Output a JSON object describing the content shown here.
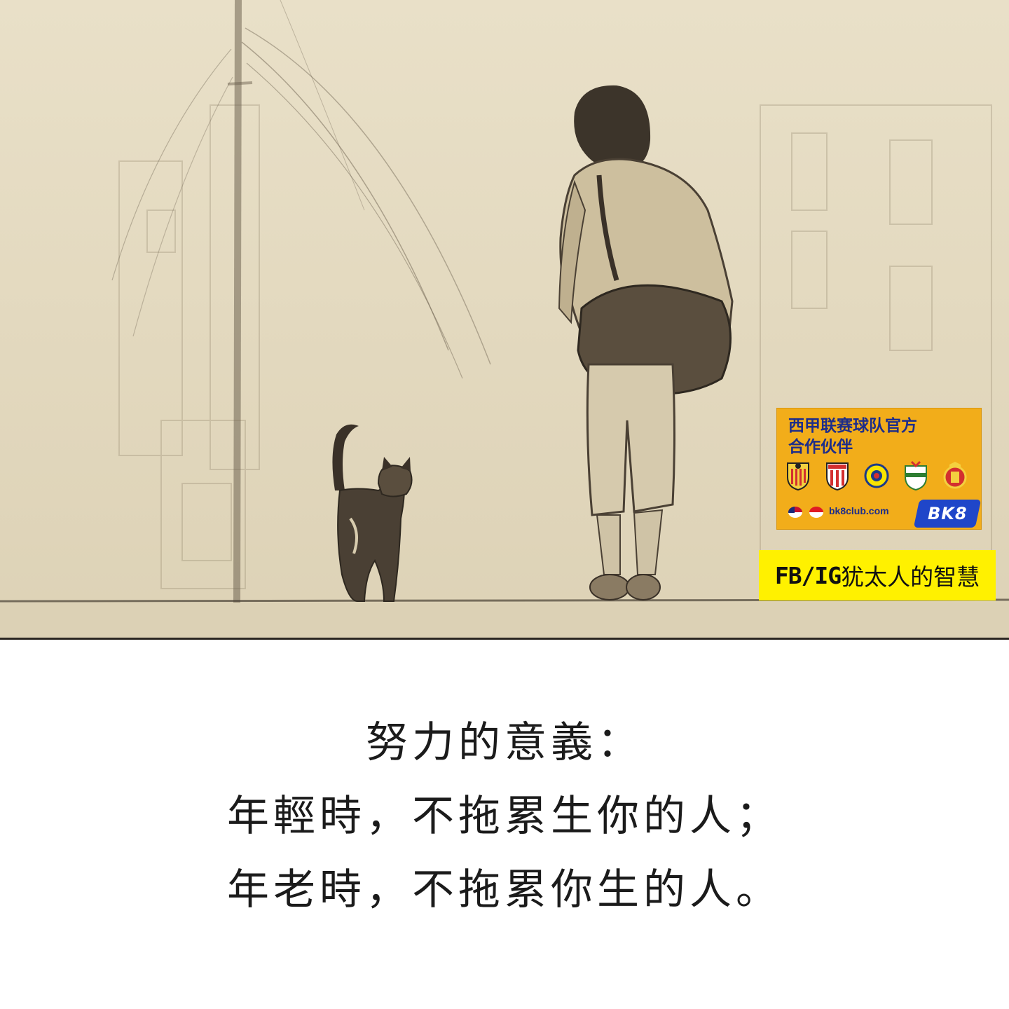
{
  "illustration": {
    "description_icon": "sketch-person-and-cat-icon"
  },
  "ad": {
    "title_line1": "西甲联赛球队官方",
    "title_line2": "合作伙伴",
    "url": "bk8club.com",
    "logo_text": "BK8",
    "colors": {
      "background": "#f2ad1a",
      "text": "#1d2d8a",
      "logo": "#1f46c9"
    }
  },
  "source": {
    "prefix": "FB/IG",
    "name": "犹太人的智慧",
    "background": "#fff100"
  },
  "quote": {
    "line1": "努力的意義：",
    "line2": "年輕時，不拖累生你的人；",
    "line3": "年老時，不拖累你生的人。"
  }
}
